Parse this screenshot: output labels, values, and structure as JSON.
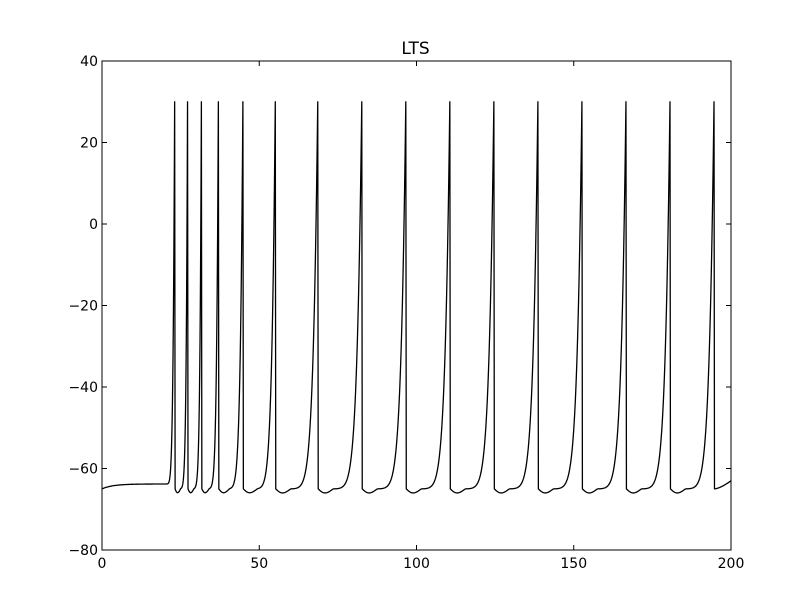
{
  "chart_data": {
    "type": "line",
    "title": "LTS",
    "xlabel": "",
    "ylabel": "",
    "xlim": [
      0,
      200
    ],
    "ylim": [
      -80,
      40
    ],
    "xticks": [
      0,
      50,
      100,
      150,
      200
    ],
    "yticks": [
      40,
      20,
      0,
      -20,
      -40,
      -60,
      -80
    ],
    "x_tick_labels": [
      "0",
      "50",
      "100",
      "150",
      "200"
    ],
    "y_tick_labels": [
      "40",
      "20",
      "0",
      "−20",
      "−40",
      "−60",
      "−80"
    ],
    "grid": false,
    "legend": "none",
    "line_color": "#000000",
    "series": [
      {
        "resting_potential": -65,
        "plateau_before_input": -63.8,
        "input_onset": 20,
        "spike_peak": 30,
        "reset_value": -65,
        "spike_times": [
          23.1,
          27.2,
          31.6,
          37.0,
          44.8,
          55.1,
          68.6,
          82.6,
          96.6,
          110.6,
          124.6,
          138.6,
          152.6,
          166.6,
          180.6,
          194.6
        ],
        "end": {
          "x": 200,
          "y": -63
        }
      }
    ]
  }
}
